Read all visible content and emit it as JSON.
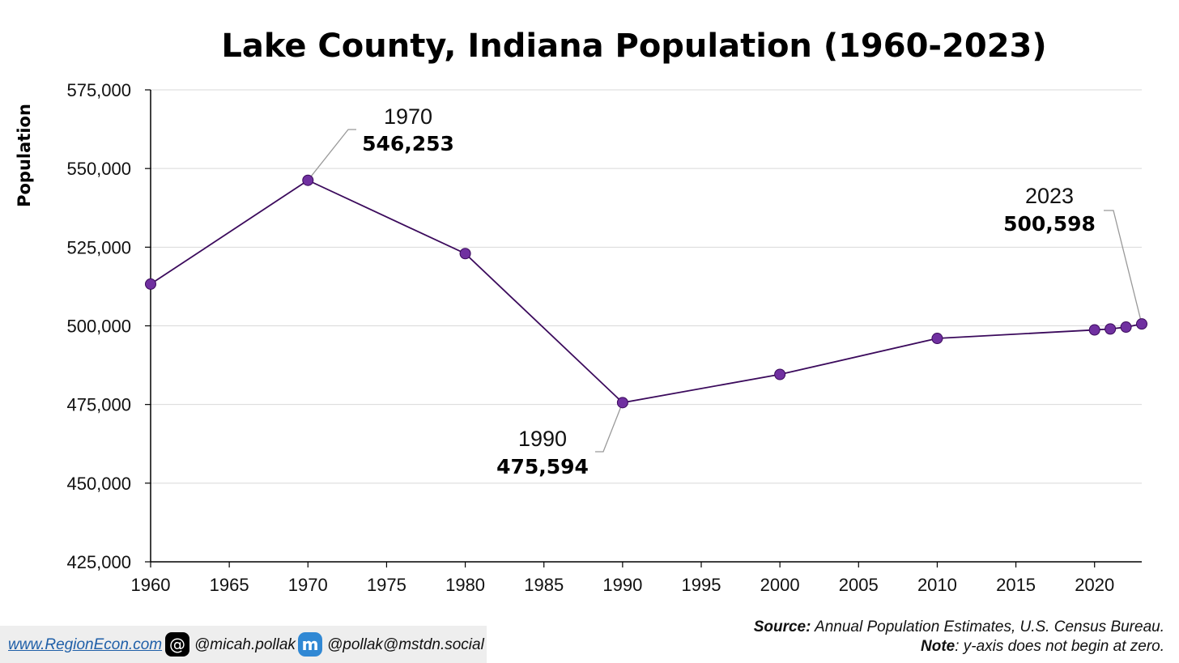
{
  "chart_data": {
    "type": "line",
    "title": "Lake County, Indiana Population (1960-2023)",
    "ylabel": "Population",
    "xlabel": "",
    "xlim": [
      1960,
      2023
    ],
    "ylim": [
      425000,
      575000
    ],
    "x_ticks": [
      "1960",
      "1965",
      "1970",
      "1975",
      "1980",
      "1985",
      "1990",
      "1995",
      "2000",
      "2005",
      "2010",
      "2015",
      "2020"
    ],
    "x_tick_values": [
      1960,
      1965,
      1970,
      1975,
      1980,
      1985,
      1990,
      1995,
      2000,
      2005,
      2010,
      2015,
      2020
    ],
    "y_ticks": [
      "425,000",
      "450,000",
      "475,000",
      "500,000",
      "525,000",
      "550,000",
      "575,000"
    ],
    "y_tick_values": [
      425000,
      450000,
      475000,
      500000,
      525000,
      550000,
      575000
    ],
    "grid": "horizontal",
    "line_color": "#3b0a5c",
    "marker_color": "#7030a0",
    "series": [
      {
        "x": [
          1960,
          1970,
          1980,
          1990,
          2000,
          2010,
          2020,
          2021,
          2022,
          2023
        ],
        "y": [
          513269,
          546253,
          522965,
          475594,
          484564,
          496005,
          498700,
          499000,
          499600,
          500598
        ]
      }
    ],
    "annotations": [
      {
        "year_label": "1970",
        "value_label": "546,253"
      },
      {
        "year_label": "1990",
        "value_label": "475,594"
      },
      {
        "year_label": "2023",
        "value_label": "500,598"
      }
    ]
  },
  "footer": {
    "website": "www.RegionEcon.com",
    "threads_icon": "threads-icon",
    "threads_handle": "@micah.pollak",
    "mastodon_icon": "mastodon-icon",
    "mastodon_handle": "@pollak@mstdn.social",
    "source_label": "Source:",
    "source_text": " Annual Population Estimates, U.S. Census Bureau.",
    "note_label": "Note",
    "note_text": ": y-axis does not begin at zero."
  }
}
